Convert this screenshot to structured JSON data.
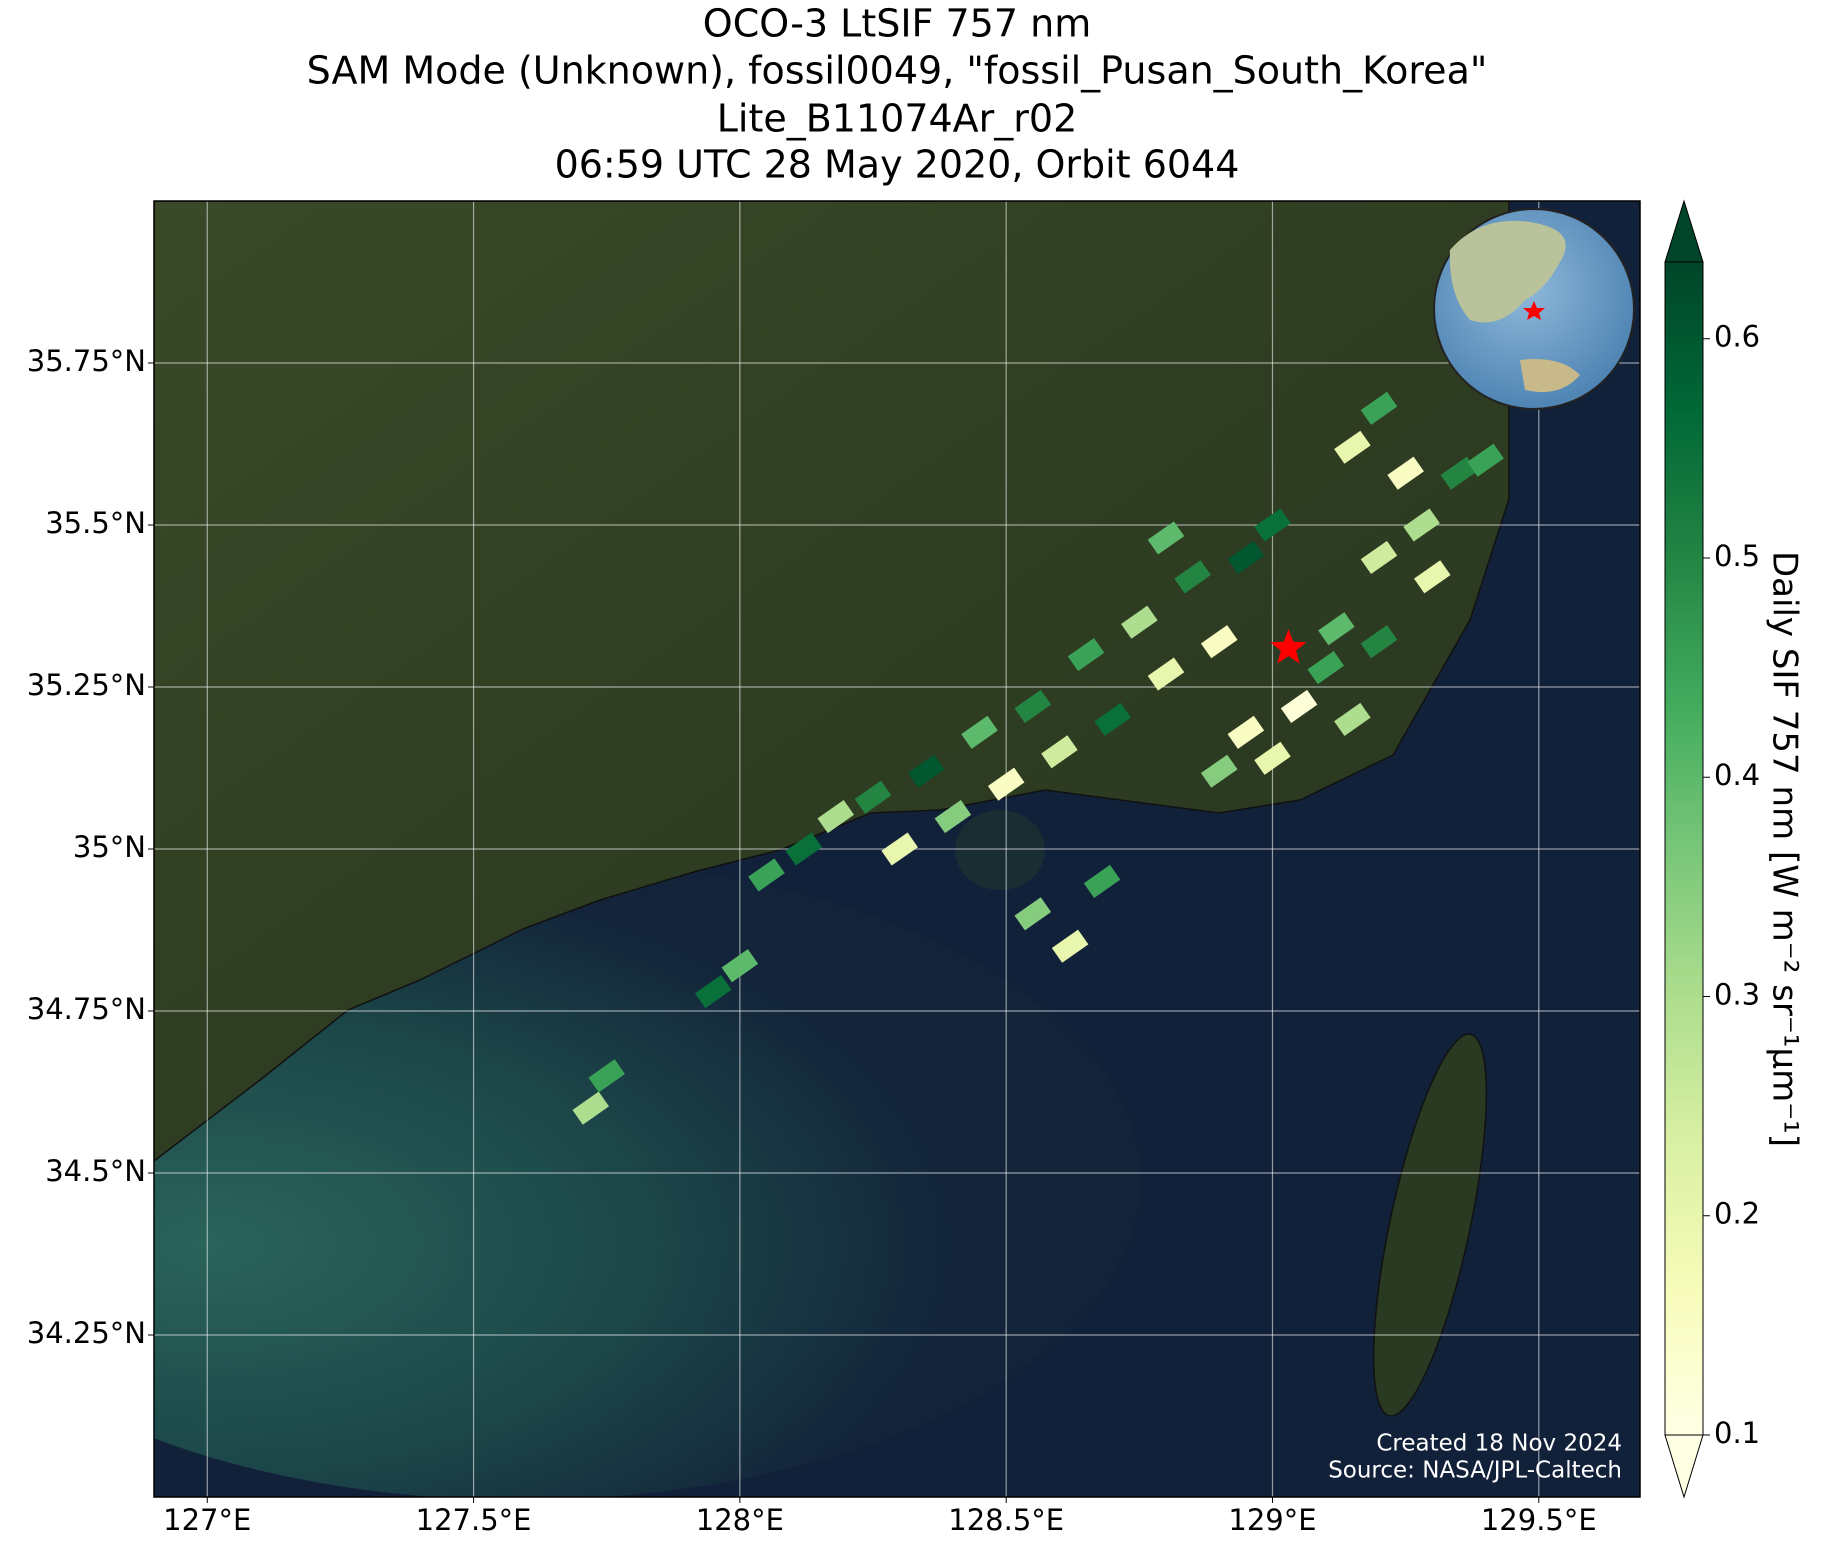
{
  "chart_data": {
    "type": "footprint-map",
    "title": [
      "OCO-3 LtSIF 757 nm",
      "SAM Mode (Unknown), fossil0049, \"fossil_Pusan_South_Korea\"",
      "Lite_B11074Ar_r02",
      "06:59 UTC 28 May 2020, Orbit 6044"
    ],
    "xlim": [
      126.9,
      129.69
    ],
    "ylim": [
      34.0,
      36.0
    ],
    "xticks": [
      {
        "value": 127,
        "label": "127°E"
      },
      {
        "value": 127.5,
        "label": "127.5°E"
      },
      {
        "value": 128,
        "label": "128°E"
      },
      {
        "value": 128.5,
        "label": "128.5°E"
      },
      {
        "value": 129,
        "label": "129°E"
      },
      {
        "value": 129.5,
        "label": "129.5°E"
      }
    ],
    "yticks": [
      {
        "value": 34.25,
        "label": "34.25°N"
      },
      {
        "value": 34.5,
        "label": "34.5°N"
      },
      {
        "value": 34.75,
        "label": "34.75°N"
      },
      {
        "value": 35,
        "label": "35°N"
      },
      {
        "value": 35.25,
        "label": "35.25°N"
      },
      {
        "value": 35.5,
        "label": "35.5°N"
      },
      {
        "value": 35.75,
        "label": "35.75°N"
      }
    ],
    "grid": true,
    "soundings": {
      "lon": [
        128.05,
        128.12,
        128.18,
        128.25,
        128.3,
        128.35,
        128.4,
        128.45,
        128.5,
        128.55,
        128.6,
        128.65,
        128.7,
        128.75,
        128.8,
        128.85,
        128.9,
        128.95,
        129.0,
        128.8,
        128.9,
        128.95,
        129.0,
        129.05,
        129.1,
        129.15,
        129.2,
        129.12,
        129.2,
        129.28,
        129.35,
        129.3,
        129.4,
        129.15,
        129.2,
        129.25,
        128.55,
        128.62,
        128.68,
        128.0,
        127.95,
        127.75,
        127.72
      ],
      "lat": [
        34.96,
        35.0,
        35.05,
        35.08,
        35.0,
        35.12,
        35.05,
        35.18,
        35.1,
        35.22,
        35.15,
        35.3,
        35.2,
        35.35,
        35.27,
        35.42,
        35.32,
        35.45,
        35.5,
        35.48,
        35.12,
        35.18,
        35.14,
        35.22,
        35.28,
        35.2,
        35.32,
        35.34,
        35.45,
        35.5,
        35.58,
        35.42,
        35.6,
        35.62,
        35.68,
        35.58,
        34.9,
        34.85,
        34.95,
        34.82,
        34.78,
        34.65,
        34.6
      ],
      "values": [
        0.45,
        0.55,
        0.3,
        0.5,
        0.2,
        0.6,
        0.35,
        0.4,
        0.15,
        0.5,
        0.25,
        0.45,
        0.55,
        0.3,
        0.2,
        0.5,
        0.15,
        0.6,
        0.55,
        0.4,
        0.35,
        0.15,
        0.2,
        0.12,
        0.45,
        0.3,
        0.5,
        0.4,
        0.25,
        0.3,
        0.5,
        0.2,
        0.45,
        0.2,
        0.45,
        0.15,
        0.35,
        0.2,
        0.45,
        0.4,
        0.55,
        0.45,
        0.3
      ]
    },
    "target": {
      "lon": 129.03,
      "lat": 35.31
    },
    "colormap": [
      "#ffffe5",
      "#f7fcb9",
      "#d9f0a3",
      "#addd8e",
      "#78c679",
      "#41ab5d",
      "#238443",
      "#006837",
      "#004529"
    ],
    "clim": [
      0.1,
      0.635
    ],
    "cticks": [
      0.1,
      0.2,
      0.3,
      0.4,
      0.5,
      0.6
    ],
    "colorbar_label": "Daily SIF 757 nm [W m⁻² sr⁻¹μm⁻¹]",
    "credit": [
      "Created 18 Nov 2024",
      "Source: NASA/JPL-Caltech"
    ]
  }
}
